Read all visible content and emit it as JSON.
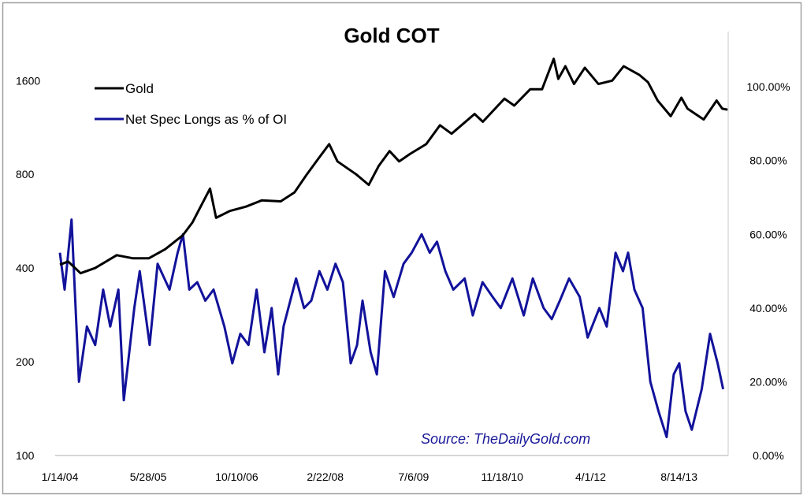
{
  "chart_data": {
    "type": "line",
    "title": "Gold COT",
    "legend_position": "top-left",
    "grid": false,
    "annotation": "Source: TheDailyGold.com",
    "x_tick_labels": [
      "1/14/04",
      "5/28/05",
      "10/10/06",
      "2/22/08",
      "7/6/09",
      "11/18/10",
      "4/1/12",
      "8/14/13"
    ],
    "x_tick_dates": [
      "2004-01-14",
      "2005-05-28",
      "2006-10-10",
      "2008-02-22",
      "2009-07-06",
      "2010-11-18",
      "2012-04-01",
      "2013-08-14"
    ],
    "left_axis": {
      "scale": "log",
      "range": [
        100,
        2300
      ],
      "tick_labels": [
        "100",
        "200",
        "400",
        "800",
        "1600"
      ],
      "ticks": [
        100,
        200,
        400,
        800,
        1600
      ]
    },
    "right_axis": {
      "scale": "linear",
      "range": [
        0,
        1.15
      ],
      "tick_labels": [
        "0.00%",
        "20.00%",
        "40.00%",
        "60.00%",
        "80.00%",
        "100.00%"
      ],
      "ticks": [
        0,
        0.2,
        0.4,
        0.6,
        0.8,
        1.0
      ]
    },
    "series": [
      {
        "name": "Gold",
        "axis": "left",
        "color": "#000000",
        "points": [
          [
            "2004-01-14",
            410
          ],
          [
            "2004-03-01",
            420
          ],
          [
            "2004-05-10",
            385
          ],
          [
            "2004-08-01",
            400
          ],
          [
            "2004-12-01",
            440
          ],
          [
            "2005-03-01",
            430
          ],
          [
            "2005-06-01",
            430
          ],
          [
            "2005-09-01",
            460
          ],
          [
            "2005-12-10",
            510
          ],
          [
            "2006-02-01",
            560
          ],
          [
            "2006-05-12",
            720
          ],
          [
            "2006-06-15",
            580
          ],
          [
            "2006-09-01",
            610
          ],
          [
            "2006-12-01",
            630
          ],
          [
            "2007-03-01",
            660
          ],
          [
            "2007-06-15",
            655
          ],
          [
            "2007-09-01",
            700
          ],
          [
            "2007-11-10",
            800
          ],
          [
            "2008-01-15",
            900
          ],
          [
            "2008-03-15",
            1000
          ],
          [
            "2008-05-01",
            880
          ],
          [
            "2008-08-15",
            800
          ],
          [
            "2008-10-25",
            740
          ],
          [
            "2008-12-20",
            850
          ],
          [
            "2009-02-20",
            950
          ],
          [
            "2009-04-15",
            880
          ],
          [
            "2009-06-15",
            930
          ],
          [
            "2009-09-15",
            1000
          ],
          [
            "2009-12-02",
            1150
          ],
          [
            "2010-02-05",
            1080
          ],
          [
            "2010-06-15",
            1250
          ],
          [
            "2010-08-01",
            1180
          ],
          [
            "2010-12-01",
            1400
          ],
          [
            "2011-01-25",
            1330
          ],
          [
            "2011-04-25",
            1500
          ],
          [
            "2011-07-01",
            1500
          ],
          [
            "2011-09-05",
            1880
          ],
          [
            "2011-10-01",
            1620
          ],
          [
            "2011-11-10",
            1780
          ],
          [
            "2011-12-29",
            1560
          ],
          [
            "2012-02-28",
            1760
          ],
          [
            "2012-05-15",
            1560
          ],
          [
            "2012-08-01",
            1600
          ],
          [
            "2012-10-05",
            1780
          ],
          [
            "2013-01-01",
            1670
          ],
          [
            "2013-02-20",
            1580
          ],
          [
            "2013-04-15",
            1380
          ],
          [
            "2013-06-28",
            1230
          ],
          [
            "2013-08-27",
            1410
          ],
          [
            "2013-10-01",
            1300
          ],
          [
            "2013-12-31",
            1200
          ],
          [
            "2014-03-14",
            1380
          ],
          [
            "2014-04-15",
            1300
          ],
          [
            "2014-05-15",
            1290
          ]
        ]
      },
      {
        "name": "Net Spec Longs as % of OI",
        "axis": "right",
        "color": "#12129b",
        "points": [
          [
            "2004-01-14",
            0.55
          ],
          [
            "2004-02-10",
            0.45
          ],
          [
            "2004-03-20",
            0.64
          ],
          [
            "2004-05-01",
            0.2
          ],
          [
            "2004-06-15",
            0.35
          ],
          [
            "2004-08-01",
            0.3
          ],
          [
            "2004-09-15",
            0.45
          ],
          [
            "2004-10-25",
            0.35
          ],
          [
            "2004-12-10",
            0.45
          ],
          [
            "2005-01-10",
            0.15
          ],
          [
            "2005-03-10",
            0.4
          ],
          [
            "2005-04-10",
            0.5
          ],
          [
            "2005-06-05",
            0.3
          ],
          [
            "2005-07-20",
            0.52
          ],
          [
            "2005-09-25",
            0.45
          ],
          [
            "2005-11-10",
            0.55
          ],
          [
            "2005-12-10",
            0.6
          ],
          [
            "2006-01-15",
            0.45
          ],
          [
            "2006-03-01",
            0.47
          ],
          [
            "2006-04-15",
            0.42
          ],
          [
            "2006-06-01",
            0.45
          ],
          [
            "2006-08-01",
            0.35
          ],
          [
            "2006-09-15",
            0.25
          ],
          [
            "2006-10-30",
            0.33
          ],
          [
            "2006-12-15",
            0.3
          ],
          [
            "2007-01-30",
            0.45
          ],
          [
            "2007-03-15",
            0.28
          ],
          [
            "2007-04-25",
            0.4
          ],
          [
            "2007-06-01",
            0.22
          ],
          [
            "2007-07-01",
            0.35
          ],
          [
            "2007-09-10",
            0.48
          ],
          [
            "2007-10-25",
            0.4
          ],
          [
            "2007-12-05",
            0.42
          ],
          [
            "2008-01-20",
            0.5
          ],
          [
            "2008-03-05",
            0.45
          ],
          [
            "2008-04-20",
            0.52
          ],
          [
            "2008-06-01",
            0.47
          ],
          [
            "2008-07-15",
            0.25
          ],
          [
            "2008-08-20",
            0.3
          ],
          [
            "2008-09-20",
            0.42
          ],
          [
            "2008-11-05",
            0.28
          ],
          [
            "2008-12-10",
            0.22
          ],
          [
            "2009-01-25",
            0.5
          ],
          [
            "2009-03-15",
            0.43
          ],
          [
            "2009-05-10",
            0.52
          ],
          [
            "2009-06-25",
            0.55
          ],
          [
            "2009-08-20",
            0.6
          ],
          [
            "2009-10-05",
            0.55
          ],
          [
            "2009-11-15",
            0.58
          ],
          [
            "2010-01-01",
            0.5
          ],
          [
            "2010-02-15",
            0.45
          ],
          [
            "2010-04-20",
            0.48
          ],
          [
            "2010-06-05",
            0.38
          ],
          [
            "2010-07-30",
            0.47
          ],
          [
            "2010-09-25",
            0.43
          ],
          [
            "2010-11-10",
            0.4
          ],
          [
            "2011-01-15",
            0.48
          ],
          [
            "2011-03-20",
            0.38
          ],
          [
            "2011-05-10",
            0.48
          ],
          [
            "2011-07-10",
            0.4
          ],
          [
            "2011-08-25",
            0.37
          ],
          [
            "2011-10-10",
            0.42
          ],
          [
            "2011-12-01",
            0.48
          ],
          [
            "2012-01-30",
            0.43
          ],
          [
            "2012-03-15",
            0.32
          ],
          [
            "2012-05-20",
            0.4
          ],
          [
            "2012-07-01",
            0.35
          ],
          [
            "2012-08-20",
            0.55
          ],
          [
            "2012-10-01",
            0.5
          ],
          [
            "2012-10-30",
            0.55
          ],
          [
            "2012-12-05",
            0.45
          ],
          [
            "2013-01-20",
            0.4
          ],
          [
            "2013-03-05",
            0.2
          ],
          [
            "2013-04-20",
            0.12
          ],
          [
            "2013-06-05",
            0.05
          ],
          [
            "2013-07-15",
            0.22
          ],
          [
            "2013-08-15",
            0.25
          ],
          [
            "2013-09-20",
            0.12
          ],
          [
            "2013-10-25",
            0.07
          ],
          [
            "2013-12-20",
            0.18
          ],
          [
            "2014-02-05",
            0.33
          ],
          [
            "2014-03-20",
            0.25
          ],
          [
            "2014-04-20",
            0.18
          ]
        ]
      }
    ]
  }
}
